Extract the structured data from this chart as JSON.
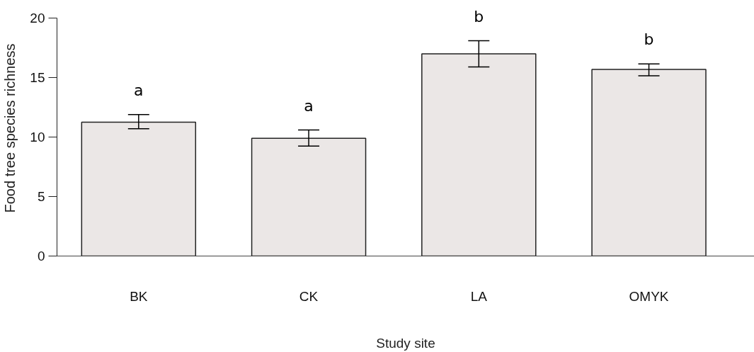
{
  "chart_data": {
    "type": "bar",
    "categories": [
      "BK",
      "CK",
      "LA",
      "OMYK"
    ],
    "values": [
      11.25,
      9.9,
      17.0,
      15.7
    ],
    "errors": [
      [
        10.7,
        11.9
      ],
      [
        9.25,
        10.6
      ],
      [
        15.9,
        18.1
      ],
      [
        15.15,
        16.15
      ]
    ],
    "color": "#ebe7e6",
    "xlabel": "Study site",
    "ylabel": "Food tree species richness",
    "ylim": [
      0,
      20
    ],
    "yticks": [
      0,
      5,
      10,
      15,
      20
    ],
    "grid": false,
    "annotations": [
      {
        "text": "a",
        "x": "BK",
        "y": 11.9
      },
      {
        "text": "a",
        "x": "CK",
        "y": 10.6
      },
      {
        "text": "b",
        "x": "LA",
        "y": 18.1
      },
      {
        "text": "b",
        "x": "OMYK",
        "y": 16.15
      }
    ]
  }
}
